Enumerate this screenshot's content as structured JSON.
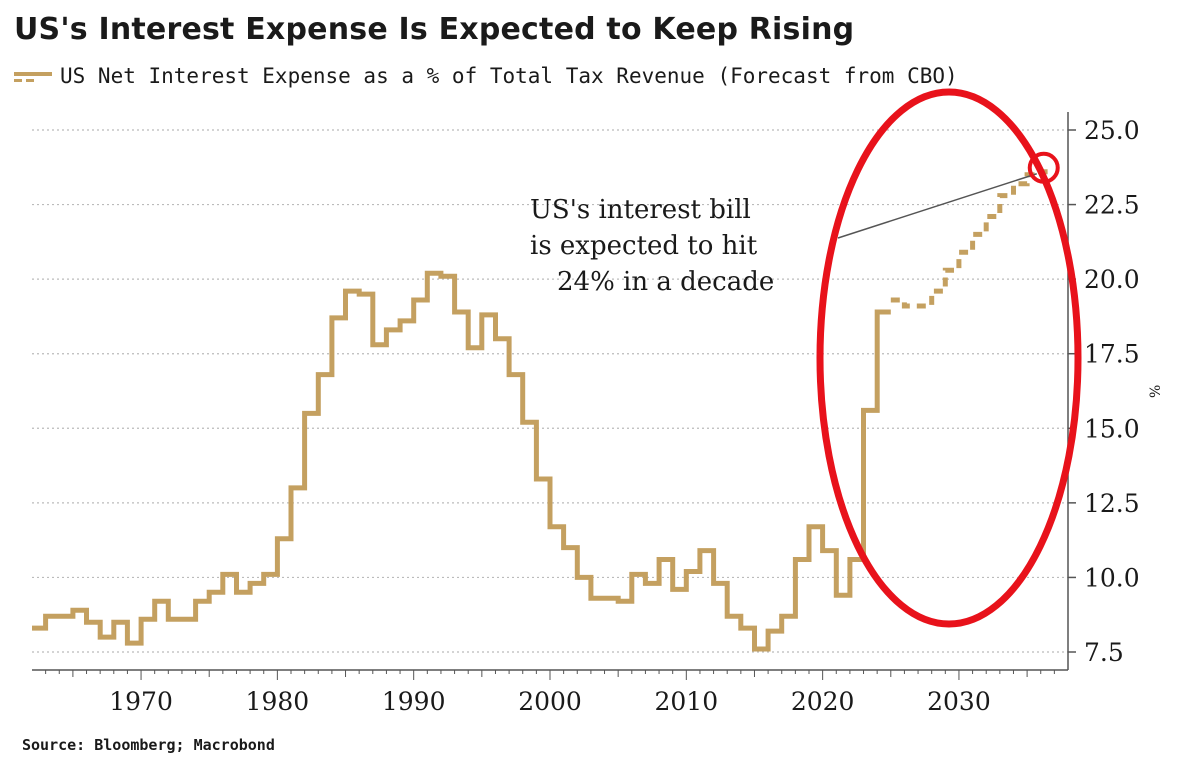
{
  "title": "US's Interest Expense Is Expected to Keep Rising",
  "legend_label": "US Net Interest Expense as a % of Total Tax Revenue (Forecast from CBO)",
  "source": "Source: Bloomberg; Macrobond",
  "colors": {
    "series": "#c4a060",
    "highlight": "#e8121b",
    "grid": "#bbbbbb",
    "axis": "#555555"
  },
  "chart_data": {
    "type": "line",
    "title": "US's Interest Expense Is Expected to Keep Rising",
    "xlabel": "",
    "ylabel": "",
    "y_unit": "%",
    "step": true,
    "xlim": [
      1962,
      2038
    ],
    "ylim": [
      7.0,
      25.5
    ],
    "grid": true,
    "legend_position": "top-left",
    "x_ticks": [
      "1970",
      "1980",
      "1990",
      "2000",
      "2010",
      "2020",
      "2030"
    ],
    "y_ticks": [
      "25.0",
      "22.5",
      "20.0",
      "17.5",
      "15.0",
      "12.5",
      "10.0",
      "7.5"
    ],
    "series": [
      {
        "name": "US Net Interest Expense as a % of Total Tax Revenue (Forecast from CBO)",
        "style": "solid",
        "x": [
          1962,
          1963,
          1964,
          1965,
          1966,
          1967,
          1968,
          1969,
          1970,
          1971,
          1972,
          1973,
          1974,
          1975,
          1976,
          1977,
          1978,
          1979,
          1980,
          1981,
          1982,
          1983,
          1984,
          1985,
          1986,
          1987,
          1988,
          1989,
          1990,
          1991,
          1992,
          1993,
          1994,
          1995,
          1996,
          1997,
          1998,
          1999,
          2000,
          2001,
          2002,
          2003,
          2004,
          2005,
          2006,
          2007,
          2008,
          2009,
          2010,
          2011,
          2012,
          2013,
          2014,
          2015,
          2016,
          2017,
          2018,
          2019,
          2020,
          2021,
          2022,
          2023,
          2024
        ],
        "y": [
          8.3,
          8.7,
          8.7,
          8.9,
          8.5,
          8.0,
          8.5,
          7.8,
          8.6,
          9.2,
          8.6,
          8.6,
          9.2,
          9.5,
          10.1,
          9.5,
          9.8,
          10.1,
          11.3,
          13.0,
          15.5,
          16.8,
          18.7,
          19.6,
          19.5,
          17.8,
          18.3,
          18.6,
          19.3,
          20.2,
          20.1,
          18.9,
          17.7,
          18.8,
          18.0,
          16.8,
          15.2,
          13.3,
          11.7,
          11.0,
          10.0,
          9.3,
          9.3,
          9.2,
          10.1,
          9.8,
          10.6,
          9.6,
          10.2,
          10.9,
          9.8,
          8.7,
          8.3,
          7.6,
          8.2,
          8.7,
          10.6,
          11.7,
          10.9,
          9.4,
          10.6,
          15.6,
          18.9
        ]
      },
      {
        "name": "CBO forecast",
        "style": "dashed",
        "x": [
          2025,
          2026,
          2027,
          2028,
          2029,
          2030,
          2031,
          2032,
          2033,
          2034,
          2035,
          2036
        ],
        "y": [
          19.3,
          19.1,
          19.1,
          19.6,
          20.3,
          20.9,
          21.5,
          22.1,
          22.8,
          23.2,
          23.5,
          23.6
        ]
      }
    ],
    "annotations": [
      {
        "lines": [
          "US's interest bill",
          "is expected to hit",
          "24% in a decade"
        ],
        "points_to": {
          "x": 2036,
          "y": 23.6
        }
      }
    ]
  }
}
